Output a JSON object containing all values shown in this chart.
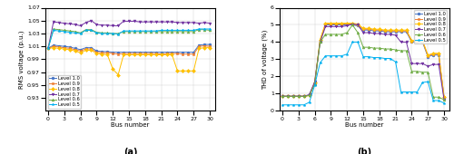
{
  "bus_numbers": [
    0,
    1,
    2,
    3,
    4,
    5,
    6,
    7,
    8,
    9,
    10,
    11,
    12,
    13,
    14,
    15,
    16,
    17,
    18,
    19,
    20,
    21,
    22,
    23,
    24,
    25,
    26,
    27,
    28,
    29,
    30
  ],
  "voltage_data": {
    "Level 1.0": [
      1.007,
      1.012,
      1.011,
      1.01,
      1.009,
      1.007,
      1.005,
      1.008,
      1.008,
      1.003,
      1.002,
      1.002,
      1.001,
      1.001,
      1.001,
      1.001,
      1.001,
      1.001,
      1.001,
      1.001,
      1.001,
      1.001,
      1.001,
      1.001,
      1.001,
      1.001,
      1.001,
      1.001,
      1.012,
      1.013,
      1.013
    ],
    "Level 0.9": [
      1.007,
      1.01,
      1.009,
      1.008,
      1.007,
      1.005,
      1.003,
      1.006,
      1.006,
      1.001,
      1.0,
      1.0,
      0.999,
      0.998,
      0.999,
      0.999,
      0.999,
      0.999,
      0.999,
      0.999,
      0.999,
      0.998,
      0.999,
      0.999,
      0.999,
      0.998,
      0.998,
      0.998,
      1.01,
      1.011,
      1.01
    ],
    "Level 0.8": [
      1.007,
      1.008,
      1.007,
      1.006,
      1.005,
      1.003,
      1.0,
      1.004,
      1.004,
      0.999,
      0.998,
      0.997,
      0.975,
      0.966,
      0.997,
      0.997,
      0.997,
      0.997,
      0.997,
      0.997,
      0.997,
      0.997,
      0.997,
      0.997,
      0.972,
      0.972,
      0.972,
      0.972,
      1.007,
      1.008,
      1.008
    ],
    "Level 0.7": [
      1.007,
      1.048,
      1.047,
      1.046,
      1.045,
      1.044,
      1.042,
      1.047,
      1.05,
      1.044,
      1.043,
      1.043,
      1.042,
      1.042,
      1.049,
      1.049,
      1.049,
      1.048,
      1.048,
      1.048,
      1.048,
      1.048,
      1.048,
      1.048,
      1.047,
      1.047,
      1.047,
      1.047,
      1.046,
      1.047,
      1.046
    ],
    "Level 0.6": [
      1.007,
      1.037,
      1.036,
      1.035,
      1.034,
      1.033,
      1.031,
      1.036,
      1.036,
      1.032,
      1.031,
      1.031,
      1.03,
      1.03,
      1.033,
      1.033,
      1.033,
      1.033,
      1.033,
      1.033,
      1.033,
      1.033,
      1.033,
      1.033,
      1.033,
      1.033,
      1.033,
      1.033,
      1.036,
      1.036,
      1.035
    ],
    "Level 0.5": [
      1.007,
      1.035,
      1.034,
      1.033,
      1.032,
      1.031,
      1.03,
      1.035,
      1.035,
      1.031,
      1.03,
      1.03,
      1.03,
      1.029,
      1.034,
      1.034,
      1.034,
      1.034,
      1.034,
      1.034,
      1.034,
      1.035,
      1.035,
      1.035,
      1.035,
      1.035,
      1.035,
      1.035,
      1.037,
      1.037,
      1.037
    ]
  },
  "thdv_data": {
    "Level 1.0": [
      0.85,
      0.85,
      0.85,
      0.85,
      0.85,
      0.9,
      1.6,
      4.05,
      5.0,
      5.0,
      5.0,
      5.0,
      5.0,
      5.0,
      4.95,
      4.7,
      4.7,
      4.65,
      4.65,
      4.6,
      4.6,
      4.6,
      4.6,
      4.6,
      4.0,
      4.0,
      4.0,
      3.15,
      3.25,
      3.25,
      0.75
    ],
    "Level 0.9": [
      0.85,
      0.85,
      0.85,
      0.85,
      0.85,
      0.9,
      1.65,
      4.1,
      5.05,
      5.05,
      5.05,
      5.05,
      5.05,
      5.05,
      5.0,
      4.75,
      4.75,
      4.7,
      4.7,
      4.65,
      4.65,
      4.65,
      4.65,
      4.65,
      4.05,
      4.05,
      4.05,
      3.2,
      3.3,
      3.3,
      0.8
    ],
    "Level 0.8": [
      0.85,
      0.85,
      0.85,
      0.85,
      0.85,
      0.9,
      1.65,
      4.15,
      5.1,
      5.1,
      5.1,
      5.1,
      5.1,
      5.1,
      5.05,
      4.8,
      4.8,
      4.75,
      4.75,
      4.7,
      4.7,
      4.7,
      4.7,
      4.7,
      4.1,
      4.1,
      4.1,
      3.25,
      3.35,
      3.35,
      0.8
    ],
    "Level 0.7": [
      0.85,
      0.85,
      0.85,
      0.85,
      0.85,
      0.95,
      1.7,
      4.0,
      4.9,
      4.9,
      4.9,
      4.9,
      4.95,
      5.05,
      5.0,
      4.55,
      4.55,
      4.5,
      4.5,
      4.45,
      4.45,
      4.4,
      4.0,
      4.0,
      2.75,
      2.75,
      2.75,
      2.6,
      2.7,
      2.7,
      0.65
    ],
    "Level 0.6": [
      0.85,
      0.85,
      0.85,
      0.85,
      0.85,
      0.9,
      1.55,
      4.0,
      4.45,
      4.45,
      4.45,
      4.45,
      4.55,
      5.0,
      4.55,
      3.7,
      3.7,
      3.65,
      3.65,
      3.6,
      3.6,
      3.55,
      3.5,
      3.5,
      2.3,
      2.3,
      2.25,
      2.25,
      0.8,
      0.8,
      0.65
    ],
    "Level 0.5": [
      0.35,
      0.35,
      0.35,
      0.35,
      0.35,
      0.5,
      1.5,
      2.8,
      3.2,
      3.2,
      3.2,
      3.2,
      3.3,
      4.0,
      4.0,
      3.15,
      3.15,
      3.1,
      3.1,
      3.05,
      3.05,
      2.85,
      1.1,
      1.1,
      1.1,
      1.1,
      1.65,
      1.7,
      0.6,
      0.6,
      0.45
    ]
  },
  "colors": {
    "Level 1.0": "#4472C4",
    "Level 0.9": "#ED7D31",
    "Level 0.8": "#FFC000",
    "Level 0.7": "#7030A0",
    "Level 0.6": "#70AD47",
    "Level 0.5": "#00B0F0"
  },
  "markers": {
    "Level 1.0": "o",
    "Level 0.9": "s",
    "Level 0.8": "D",
    "Level 0.7": "v",
    "Level 0.6": "^",
    "Level 0.5": "*"
  },
  "voltage_ylim": [
    0.91,
    1.07
  ],
  "voltage_yticks": [
    0.93,
    0.95,
    0.97,
    0.99,
    1.01,
    1.03,
    1.05,
    1.07
  ],
  "thdv_ylim": [
    0,
    6
  ],
  "thdv_yticks": [
    0,
    1,
    2,
    3,
    4,
    5,
    6
  ],
  "xticks": [
    0,
    3,
    6,
    9,
    12,
    15,
    18,
    21,
    24,
    27,
    30
  ],
  "xlabel": "Bus number",
  "ylabel_a": "RMS voltage (p.u.)",
  "ylabel_b": "THD of voltage (%)",
  "label_a": "(a)",
  "label_b": "(b)"
}
